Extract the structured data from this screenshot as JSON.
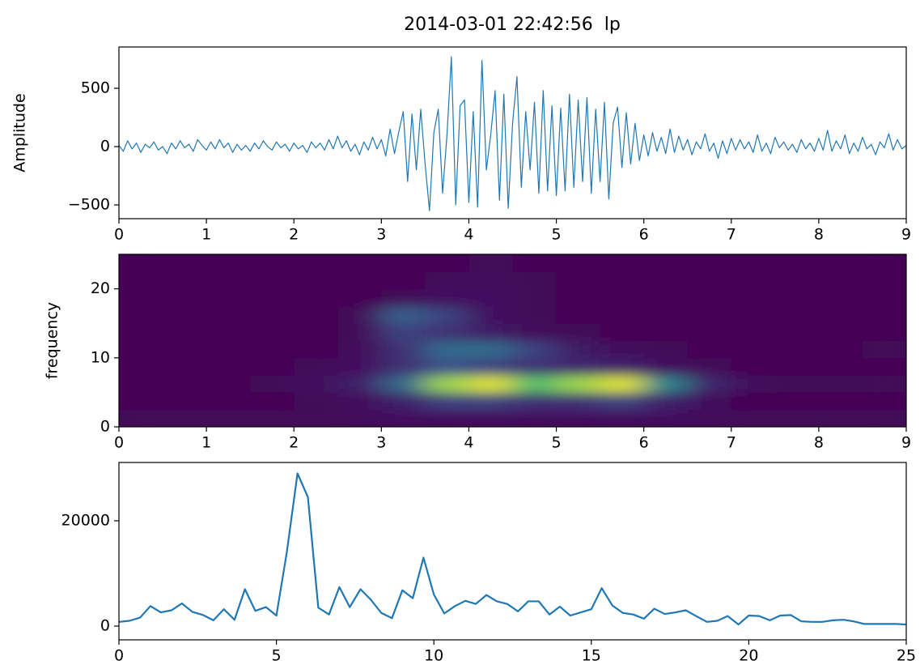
{
  "chart_data": [
    {
      "type": "line",
      "title": "2014-03-01 22:42:56  lp",
      "y_label": "Amplitude",
      "color": "#1f77b4",
      "x": [
        0,
        0.05,
        0.1,
        0.15,
        0.2,
        0.25,
        0.3,
        0.35,
        0.4,
        0.45,
        0.5,
        0.55,
        0.6,
        0.65,
        0.7,
        0.75,
        0.8,
        0.85,
        0.9,
        0.95,
        1,
        1.05,
        1.1,
        1.15,
        1.2,
        1.25,
        1.3,
        1.35,
        1.4,
        1.45,
        1.5,
        1.55,
        1.6,
        1.65,
        1.7,
        1.75,
        1.8,
        1.85,
        1.9,
        1.95,
        2,
        2.05,
        2.1,
        2.15,
        2.2,
        2.25,
        2.3,
        2.35,
        2.4,
        2.45,
        2.5,
        2.55,
        2.6,
        2.65,
        2.7,
        2.75,
        2.8,
        2.85,
        2.9,
        2.95,
        3,
        3.05,
        3.1,
        3.15,
        3.2,
        3.25,
        3.3,
        3.35,
        3.4,
        3.45,
        3.5,
        3.55,
        3.6,
        3.65,
        3.7,
        3.75,
        3.8,
        3.85,
        3.9,
        3.95,
        4,
        4.05,
        4.1,
        4.15,
        4.2,
        4.25,
        4.3,
        4.35,
        4.4,
        4.45,
        4.5,
        4.55,
        4.6,
        4.65,
        4.7,
        4.75,
        4.8,
        4.85,
        4.9,
        4.95,
        5,
        5.05,
        5.1,
        5.15,
        5.2,
        5.25,
        5.3,
        5.35,
        5.4,
        5.45,
        5.5,
        5.55,
        5.6,
        5.65,
        5.7,
        5.75,
        5.8,
        5.85,
        5.9,
        5.95,
        6,
        6.05,
        6.1,
        6.15,
        6.2,
        6.25,
        6.3,
        6.35,
        6.4,
        6.45,
        6.5,
        6.55,
        6.6,
        6.65,
        6.7,
        6.75,
        6.8,
        6.85,
        6.9,
        6.95,
        7,
        7.05,
        7.1,
        7.15,
        7.2,
        7.25,
        7.3,
        7.35,
        7.4,
        7.45,
        7.5,
        7.55,
        7.6,
        7.65,
        7.7,
        7.75,
        7.8,
        7.85,
        7.9,
        7.95,
        8,
        8.05,
        8.1,
        8.15,
        8.2,
        8.25,
        8.3,
        8.35,
        8.4,
        8.45,
        8.5,
        8.55,
        8.6,
        8.65,
        8.7,
        8.75,
        8.8,
        8.85,
        8.9,
        8.95,
        9
      ],
      "values": [
        10,
        -40,
        50,
        -20,
        30,
        -50,
        20,
        -10,
        40,
        -30,
        0,
        -60,
        30,
        -20,
        50,
        -10,
        20,
        -40,
        60,
        10,
        -30,
        40,
        -20,
        60,
        -10,
        30,
        -50,
        20,
        -30,
        10,
        -40,
        30,
        -20,
        50,
        0,
        -30,
        40,
        -10,
        20,
        -40,
        30,
        -20,
        10,
        -50,
        40,
        -10,
        30,
        -30,
        60,
        -20,
        90,
        -10,
        50,
        -40,
        20,
        -70,
        40,
        -30,
        80,
        -20,
        60,
        -80,
        150,
        -60,
        130,
        300,
        -300,
        280,
        -200,
        320,
        -150,
        -550,
        120,
        320,
        -400,
        100,
        770,
        -500,
        350,
        400,
        -480,
        300,
        -520,
        740,
        -200,
        100,
        480,
        -460,
        450,
        -530,
        200,
        600,
        -350,
        300,
        -200,
        380,
        -400,
        480,
        -380,
        350,
        -420,
        330,
        -380,
        450,
        -350,
        400,
        -300,
        420,
        -400,
        320,
        -300,
        380,
        -450,
        200,
        340,
        -180,
        290,
        -150,
        200,
        -120,
        100,
        -80,
        120,
        -40,
        80,
        -60,
        150,
        -50,
        90,
        -30,
        60,
        -70,
        40,
        -20,
        110,
        -40,
        30,
        -100,
        50,
        -60,
        70,
        -30,
        60,
        -20,
        40,
        -50,
        100,
        -40,
        30,
        -60,
        80,
        -10,
        40,
        -30,
        20,
        -50,
        60,
        -20,
        30,
        -40,
        70,
        -30,
        140,
        -40,
        50,
        -20,
        100,
        -60,
        30,
        -40,
        80,
        -20,
        20,
        -70,
        40,
        -10,
        110,
        -30,
        60,
        -20,
        10
      ],
      "xlim": [
        0,
        9
      ],
      "xticks": [
        0,
        1,
        2,
        3,
        4,
        5,
        6,
        7,
        8,
        9
      ],
      "ylim": [
        -618,
        854
      ],
      "yticks": [
        {
          "value": -500,
          "label": "−500"
        },
        0,
        500
      ]
    },
    {
      "type": "heatmap",
      "y_label": "frequency",
      "colormap": "viridis",
      "x_edges": [
        0,
        0.5,
        1,
        1.5,
        2,
        2.5,
        3,
        3.5,
        4,
        4.5,
        5,
        5.5,
        6,
        6.5,
        7,
        7.5,
        8,
        8.5,
        9
      ],
      "y_edges": [
        0,
        2.5,
        5,
        7.5,
        10,
        12.5,
        15,
        17.5,
        20,
        22.5,
        25
      ],
      "z": [
        [
          0.02,
          0.02,
          0.02,
          0.02,
          0.02,
          0.03,
          0.05,
          0.05,
          0.05,
          0.05,
          0.05,
          0.05,
          0.05,
          0.03,
          0.02,
          0.02,
          0.02,
          0.02
        ],
        [
          0,
          0,
          0,
          0,
          0.02,
          0.03,
          0.1,
          0.2,
          0.2,
          0.15,
          0.15,
          0.2,
          0.1,
          0.03,
          0,
          0,
          0,
          0
        ],
        [
          0,
          0,
          0,
          0.02,
          0.05,
          0.1,
          0.35,
          0.85,
          0.95,
          0.7,
          0.85,
          0.95,
          0.45,
          0.12,
          0.03,
          0.02,
          0.02,
          0.02
        ],
        [
          0,
          0,
          0,
          0,
          0.02,
          0.05,
          0.15,
          0.25,
          0.2,
          0.15,
          0.12,
          0.1,
          0.05,
          0.02,
          0,
          0,
          0,
          0
        ],
        [
          0,
          0,
          0,
          0,
          0,
          0.03,
          0.15,
          0.35,
          0.35,
          0.2,
          0.08,
          0.03,
          0.02,
          0,
          0,
          0,
          0,
          0.02
        ],
        [
          0,
          0,
          0,
          0,
          0,
          0.02,
          0.2,
          0.15,
          0.08,
          0.03,
          0.02,
          0,
          0,
          0,
          0,
          0,
          0,
          0
        ],
        [
          0,
          0,
          0,
          0,
          0,
          0.02,
          0.3,
          0.2,
          0.05,
          0.02,
          0,
          0,
          0,
          0,
          0,
          0,
          0,
          0
        ],
        [
          0,
          0,
          0,
          0,
          0,
          0,
          0.02,
          0.05,
          0.05,
          0.02,
          0,
          0,
          0,
          0,
          0,
          0,
          0,
          0
        ],
        [
          0,
          0,
          0,
          0,
          0,
          0,
          0,
          0.03,
          0.03,
          0.02,
          0,
          0,
          0,
          0,
          0,
          0,
          0,
          0
        ],
        [
          0,
          0,
          0,
          0,
          0,
          0,
          0,
          0,
          0.02,
          0,
          0,
          0,
          0,
          0,
          0,
          0,
          0,
          0
        ]
      ],
      "xlim": [
        0,
        9
      ],
      "xticks": [
        0,
        1,
        2,
        3,
        4,
        5,
        6,
        7,
        8,
        9
      ],
      "ylim": [
        0,
        25
      ],
      "yticks": [
        0,
        10,
        20
      ]
    },
    {
      "type": "line",
      "color": "#1f77b4",
      "x": [
        0,
        0.33,
        0.67,
        1,
        1.33,
        1.67,
        2,
        2.33,
        2.67,
        3,
        3.33,
        3.67,
        4,
        4.33,
        4.67,
        5,
        5.33,
        5.67,
        6,
        6.33,
        6.67,
        7,
        7.33,
        7.67,
        8,
        8.33,
        8.67,
        9,
        9.33,
        9.67,
        10,
        10.33,
        10.67,
        11,
        11.33,
        11.67,
        12,
        12.33,
        12.67,
        13,
        13.33,
        13.67,
        14,
        14.33,
        14.67,
        15,
        15.33,
        15.67,
        16,
        16.33,
        16.67,
        17,
        17.33,
        17.67,
        18,
        18.33,
        18.67,
        19,
        19.33,
        19.67,
        20,
        20.33,
        20.67,
        21,
        21.33,
        21.67,
        22,
        22.33,
        22.67,
        23,
        23.33,
        23.67,
        24,
        24.33,
        24.67,
        25
      ],
      "values": [
        800,
        1000,
        1600,
        3800,
        2600,
        3000,
        4300,
        2700,
        2100,
        1100,
        3200,
        1200,
        7000,
        2900,
        3600,
        2000,
        14000,
        29000,
        24500,
        3500,
        2200,
        7400,
        3600,
        7000,
        5000,
        2500,
        1500,
        6800,
        5300,
        13000,
        6000,
        2400,
        3800,
        4800,
        4200,
        5900,
        4700,
        4200,
        2800,
        4700,
        4700,
        2200,
        3700,
        2000,
        2600,
        3200,
        7200,
        3900,
        2500,
        2200,
        1400,
        3300,
        2300,
        2600,
        3000,
        1900,
        800,
        1000,
        1900,
        300,
        2000,
        1900,
        1100,
        2000,
        2100,
        900,
        800,
        800,
        1100,
        1200,
        900,
        400,
        400,
        400,
        400,
        300
      ],
      "xlim": [
        0,
        25
      ],
      "xticks": [
        0,
        5,
        10,
        15,
        20,
        25
      ],
      "ylim": [
        -2615,
        31077
      ],
      "yticks": [
        0,
        20000
      ]
    }
  ]
}
